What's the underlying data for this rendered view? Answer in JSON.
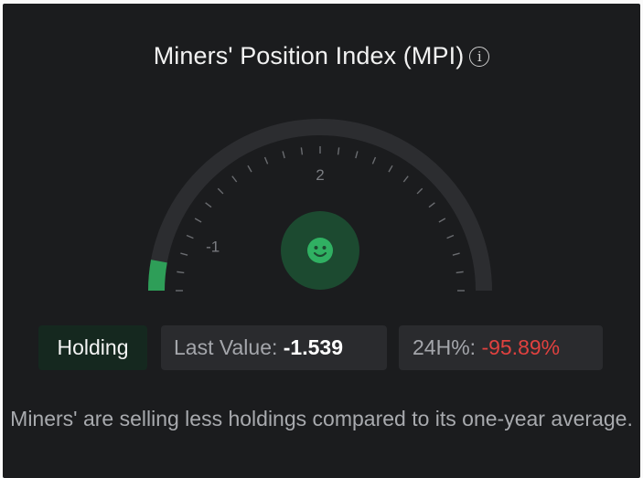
{
  "widget": {
    "title": "Miners' Position Index (MPI)",
    "info_icon": "info-circle-icon"
  },
  "gauge": {
    "min": -2,
    "max": 6,
    "value": -1.539,
    "tick_labels": [
      {
        "value": -1,
        "label": "-1"
      },
      {
        "value": 2,
        "label": "2"
      }
    ],
    "face_icon": "smiley-face-icon",
    "colors": {
      "track": "#2c2d30",
      "fill": "#2e9e58",
      "face_bg": "#1c4a30",
      "face_fg": "#30b062",
      "tick": "#6a6c70"
    }
  },
  "status": {
    "label": "Holding"
  },
  "last_value": {
    "label": "Last Value:",
    "value": "-1.539"
  },
  "change_24h": {
    "label": "24H%:",
    "value": "-95.89%",
    "color": "#e0413f"
  },
  "description": "Miners' are selling less holdings compared to its one-year average."
}
